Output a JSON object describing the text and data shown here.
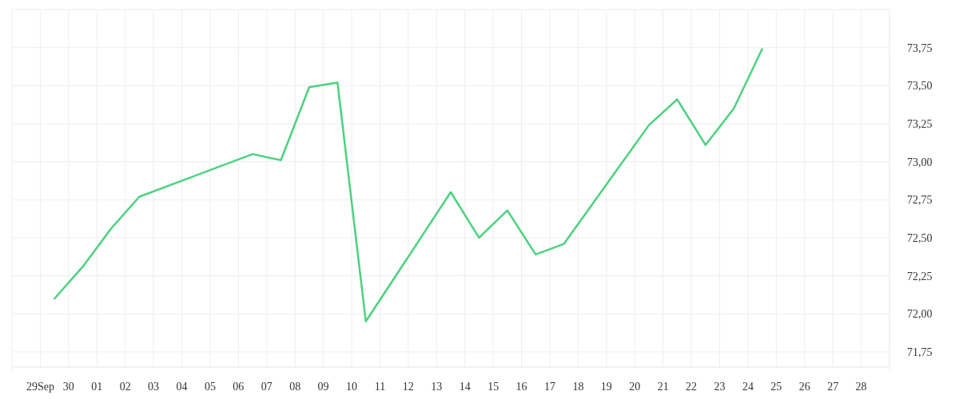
{
  "chart_data": {
    "type": "line",
    "x": [
      "--09-29T12:00",
      "--09-30T12:00",
      "--10-01T12:00",
      "--10-02T12:00",
      "--10-06T12:00",
      "--10-07T12:00",
      "--10-08T12:00",
      "--10-09T12:00",
      "--10-10T12:00",
      "--10-13T12:00",
      "--10-14T12:00",
      "--10-15T12:00",
      "--10-16T12:00",
      "--10-17T12:00",
      "--10-20T12:00",
      "--10-21T12:00",
      "--10-22T12:00",
      "--10-23T12:00",
      "--10-24T12:00"
    ],
    "series": [
      {
        "color": "#4cd27e",
        "values": [
          72.1,
          72.31,
          72.56,
          72.77,
          73.05,
          73.01,
          73.49,
          73.52,
          71.95,
          72.8,
          72.5,
          72.68,
          72.39,
          72.46,
          73.24,
          73.41,
          73.11,
          73.35,
          73.74
        ]
      }
    ],
    "xlim": [
      "--09-28",
      "--10-29"
    ],
    "xticks": [
      {
        "value": "--09-28",
        "label": null
      },
      {
        "value": "--09-29",
        "label": "29Sep"
      },
      {
        "value": "--09-30",
        "label": "30"
      },
      {
        "value": "--10-01",
        "label": "01"
      },
      {
        "value": "--10-02",
        "label": "02"
      },
      {
        "value": "--10-03",
        "label": "03"
      },
      {
        "value": "--10-04",
        "label": "04"
      },
      {
        "value": "--10-05",
        "label": "05"
      },
      {
        "value": "--10-06",
        "label": "06"
      },
      {
        "value": "--10-07",
        "label": "07"
      },
      {
        "value": "--10-08",
        "label": "08"
      },
      {
        "value": "--10-09",
        "label": "09"
      },
      {
        "value": "--10-10",
        "label": "10"
      },
      {
        "value": "--10-11",
        "label": "11"
      },
      {
        "value": "--10-12",
        "label": "12"
      },
      {
        "value": "--10-13",
        "label": "13"
      },
      {
        "value": "--10-14",
        "label": "14"
      },
      {
        "value": "--10-15",
        "label": "15"
      },
      {
        "value": "--10-16",
        "label": "16"
      },
      {
        "value": "--10-17",
        "label": "17"
      },
      {
        "value": "--10-18",
        "label": "18"
      },
      {
        "value": "--10-19",
        "label": "19"
      },
      {
        "value": "--10-20",
        "label": "20"
      },
      {
        "value": "--10-21",
        "label": "21"
      },
      {
        "value": "--10-22",
        "label": "22"
      },
      {
        "value": "--10-23",
        "label": "23"
      },
      {
        "value": "--10-24",
        "label": "24"
      },
      {
        "value": "--10-25",
        "label": "25"
      },
      {
        "value": "--10-26",
        "label": "26"
      },
      {
        "value": "--10-27",
        "label": "27"
      },
      {
        "value": "--10-28",
        "label": "28"
      },
      {
        "value": "--10-29",
        "label": null
      }
    ],
    "ylim": [
      71.65,
      74.0
    ],
    "yticks": [
      {
        "value": 71.75,
        "label": "71,75"
      },
      {
        "value": 72.0,
        "label": "72,00"
      },
      {
        "value": 72.25,
        "label": "72,25"
      },
      {
        "value": 72.5,
        "label": "72,50"
      },
      {
        "value": 72.75,
        "label": "72,75"
      },
      {
        "value": 73.0,
        "label": "73,00"
      },
      {
        "value": 73.25,
        "label": "73,25"
      },
      {
        "value": 73.5,
        "label": "73,50"
      },
      {
        "value": 73.75,
        "label": "73,75"
      }
    ],
    "grid": true,
    "marker": "none",
    "line_style": "solid"
  }
}
